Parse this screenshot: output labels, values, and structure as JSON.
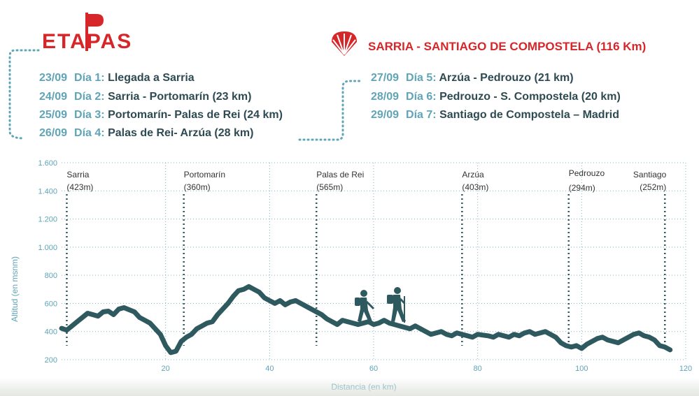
{
  "header": {
    "logo_text": "ETAPAS",
    "route_title": "SARRIA - SANTIAGO DE COMPOSTELA (116 Km)"
  },
  "stages": [
    {
      "date": "23/09",
      "day": "Día 1:",
      "desc": "Llegada a Sarria"
    },
    {
      "date": "24/09",
      "day": "Día 2:",
      "desc": "Sarria - Portomarín (23 km)"
    },
    {
      "date": "25/09",
      "day": "Día 3:",
      "desc": "Portomarín- Palas de Rei (24 km)"
    },
    {
      "date": "26/09",
      "day": "Día 4:",
      "desc": "Palas de Rei- Arzúa (28 km)"
    },
    {
      "date": "27/09",
      "day": "Día 5:",
      "desc": "Arzúa - Pedrouzo (21 km)"
    },
    {
      "date": "28/09",
      "day": "Día 6:",
      "desc": "Pedrouzo - S. Compostela (20 km)"
    },
    {
      "date": "29/09",
      "day": "Día 7:",
      "desc": "Santiago de Compostela – Madrid"
    }
  ],
  "colors": {
    "brand_red": "#d7262a",
    "accent_teal": "#5fa4b7",
    "profile": "#2e5a5f",
    "text_dark": "#2e4a52",
    "axis_text": "#5fa4b7"
  },
  "chart_data": {
    "type": "line",
    "xlabel": "Distancia (en km)",
    "ylabel": "Altitud (en msnm)",
    "xlim": [
      0,
      120
    ],
    "ylim": [
      200,
      1600
    ],
    "x_ticks": [
      20,
      40,
      60,
      80,
      100,
      120
    ],
    "y_ticks": [
      200,
      400,
      600,
      800,
      1000,
      1200,
      1400,
      1600
    ],
    "y_tick_labels": [
      "200",
      "400",
      "600",
      "800",
      "1.000",
      "1.200",
      "1.400",
      "1.600"
    ],
    "grid": true,
    "series": [
      {
        "x": [
          0,
          1,
          2,
          3,
          4,
          5,
          6,
          7,
          8,
          9,
          10,
          11,
          12,
          13,
          14,
          15,
          16,
          17,
          18,
          19,
          20,
          21,
          22,
          23,
          24,
          25,
          26,
          27,
          28,
          29,
          30,
          31,
          32,
          33,
          34,
          35,
          36,
          37,
          38,
          39,
          40,
          41,
          42,
          43,
          44,
          45,
          46,
          47,
          48,
          49,
          50,
          51,
          52,
          53,
          54,
          55,
          56,
          57,
          58,
          59,
          60,
          61,
          62,
          63,
          64,
          65,
          66,
          67,
          68,
          69,
          70,
          71,
          72,
          73,
          74,
          75,
          76,
          77,
          78,
          79,
          80,
          81,
          82,
          83,
          84,
          85,
          86,
          87,
          88,
          89,
          90,
          91,
          92,
          93,
          94,
          95,
          96,
          97,
          98,
          99,
          100,
          101,
          102,
          103,
          104,
          105,
          106,
          107,
          108,
          109,
          110,
          111,
          112,
          113,
          114,
          115,
          116,
          117
        ],
        "y": [
          423,
          410,
          440,
          470,
          500,
          530,
          520,
          510,
          540,
          545,
          520,
          560,
          570,
          555,
          540,
          500,
          480,
          460,
          420,
          380,
          300,
          250,
          260,
          330,
          360,
          380,
          420,
          440,
          460,
          470,
          520,
          560,
          600,
          650,
          690,
          700,
          720,
          700,
          680,
          640,
          620,
          600,
          620,
          590,
          610,
          620,
          600,
          580,
          560,
          540,
          520,
          490,
          470,
          450,
          480,
          470,
          460,
          450,
          460,
          470,
          450,
          460,
          480,
          460,
          450,
          440,
          430,
          420,
          440,
          420,
          400,
          380,
          390,
          400,
          380,
          370,
          390,
          380,
          370,
          360,
          380,
          375,
          370,
          360,
          380,
          370,
          360,
          380,
          370,
          390,
          400,
          380,
          390,
          400,
          380,
          360,
          320,
          300,
          290,
          300,
          280,
          310,
          330,
          350,
          360,
          340,
          330,
          320,
          340,
          360,
          380,
          390,
          370,
          360,
          340,
          300,
          290,
          270
        ]
      }
    ],
    "waypoints": [
      {
        "name": "Sarria",
        "alt_label": "(423m)",
        "km": 1
      },
      {
        "name": "Portomarín",
        "alt_label": "(360m)",
        "km": 23.5
      },
      {
        "name": "Palas de Rei",
        "alt_label": "(565m)",
        "km": 49
      },
      {
        "name": "Arzúa",
        "alt_label": "(403m)",
        "km": 77
      },
      {
        "name": "Pedrouzo",
        "alt_label": "(294m)",
        "km": 97.5
      },
      {
        "name": "Santiago",
        "alt_label": "(252m)",
        "km": 116
      }
    ]
  }
}
